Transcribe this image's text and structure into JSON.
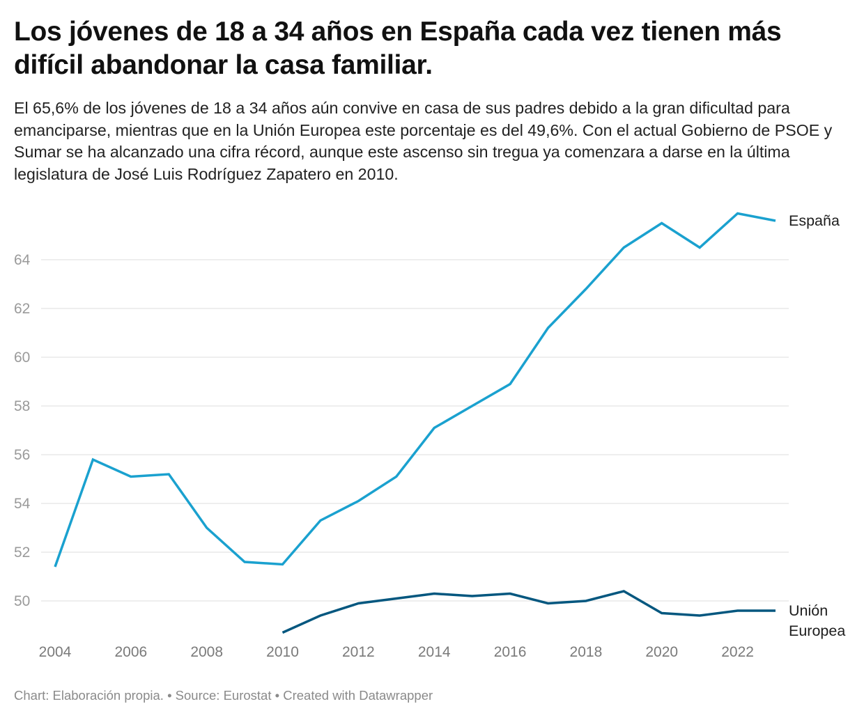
{
  "header": {
    "title": "Los jóvenes de 18 a 34 años en España cada vez tienen más difícil abandonar la casa familiar.",
    "description": "El 65,6% de los jóvenes de 18 a 34 años aún convive en casa de sus padres debido a la gran dificultad para emanciparse, mientras que en la Unión Europea este porcentaje es del 49,6%. Con el actual Gobierno de PSOE y Sumar se ha alcanzado una cifra récord, aunque este ascenso sin tregua ya comenzara a darse en la última legislatura de José Luis Rodríguez Zapatero en 2010."
  },
  "footer": {
    "text": "Chart: Elaboración propia. • Source: Eurostat • Created with Datawrapper"
  },
  "chart_data": {
    "type": "line",
    "title": "Los jóvenes de 18 a 34 años en España cada vez tienen más difícil abandonar la casa familiar.",
    "xlabel": "",
    "ylabel": "",
    "x": [
      2004,
      2005,
      2006,
      2007,
      2008,
      2009,
      2010,
      2011,
      2012,
      2013,
      2014,
      2015,
      2016,
      2017,
      2018,
      2019,
      2020,
      2021,
      2022,
      2023
    ],
    "xlim": [
      2004,
      2023
    ],
    "ylim": [
      48.5,
      66.5
    ],
    "x_ticks": [
      2004,
      2006,
      2008,
      2010,
      2012,
      2014,
      2016,
      2018,
      2020,
      2022
    ],
    "y_ticks": [
      50,
      52,
      54,
      56,
      58,
      60,
      62,
      64
    ],
    "grid": "horizontal",
    "legend": "direct labels at line ends (right)",
    "series": [
      {
        "name": "España",
        "label_lines": [
          "España"
        ],
        "color": "#1aa1cf",
        "x": [
          2004,
          2005,
          2006,
          2007,
          2008,
          2009,
          2010,
          2011,
          2012,
          2013,
          2014,
          2015,
          2016,
          2017,
          2018,
          2019,
          2020,
          2021,
          2022,
          2023
        ],
        "values": [
          51.4,
          55.8,
          55.1,
          55.2,
          53.0,
          51.6,
          51.5,
          53.3,
          54.1,
          55.1,
          57.1,
          58.0,
          58.9,
          61.2,
          62.8,
          64.5,
          65.5,
          64.5,
          65.9,
          65.6
        ]
      },
      {
        "name": "Unión Europea",
        "label_lines": [
          "Unión",
          "Europea"
        ],
        "color": "#04577f",
        "x": [
          2010,
          2011,
          2012,
          2013,
          2014,
          2015,
          2016,
          2017,
          2018,
          2019,
          2020,
          2021,
          2022,
          2023
        ],
        "values": [
          48.7,
          49.4,
          49.9,
          50.1,
          50.3,
          50.2,
          50.3,
          49.9,
          50.0,
          50.4,
          49.5,
          49.4,
          49.6,
          49.6
        ]
      }
    ],
    "grid_color": "#e3e3e3"
  }
}
